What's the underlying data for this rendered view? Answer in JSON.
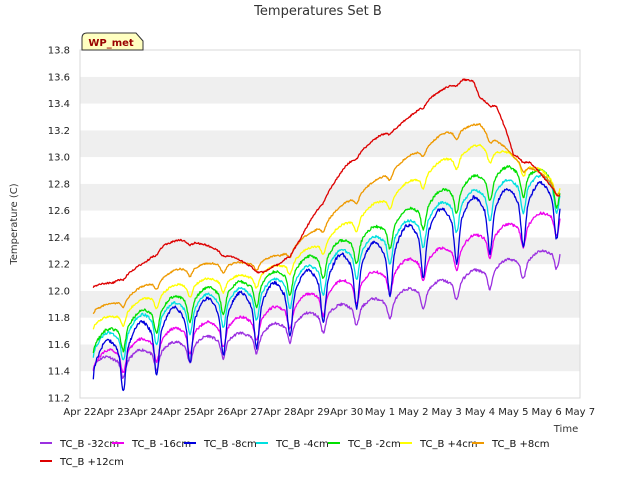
{
  "chart_data": {
    "type": "line",
    "title": "Temperatures Set B",
    "xlabel": "Time",
    "ylabel": "Temperature (C)",
    "ylim": [
      11.2,
      13.8
    ],
    "yticks": [
      11.2,
      11.4,
      11.6,
      11.8,
      12.0,
      12.2,
      12.4,
      12.6,
      12.8,
      13.0,
      13.2,
      13.4,
      13.6,
      13.8
    ],
    "x_tick_labels": [
      "Apr 22",
      "Apr 23",
      "Apr 24",
      "Apr 25",
      "Apr 26",
      "Apr 27",
      "Apr 28",
      "Apr 29",
      "Apr 30",
      "May 1",
      "May 2",
      "May 3",
      "May 4",
      "May 5",
      "May 6",
      "May 7"
    ],
    "xlim_days": [
      0,
      15
    ],
    "grid": "horizontal bands",
    "badge": "WP_met",
    "legend_position": "bottom",
    "series": [
      {
        "name": "TC_B -32cm",
        "color": "#9b30e0",
        "base": [
          [
            0.4,
            11.48
          ],
          [
            1,
            11.48
          ],
          [
            2,
            11.54
          ],
          [
            3,
            11.6
          ],
          [
            4,
            11.64
          ],
          [
            5,
            11.66
          ],
          [
            6,
            11.74
          ],
          [
            7,
            11.82
          ],
          [
            8,
            11.88
          ],
          [
            9,
            11.92
          ],
          [
            10,
            12.0
          ],
          [
            11,
            12.06
          ],
          [
            12,
            12.14
          ],
          [
            13,
            12.22
          ],
          [
            14,
            12.28
          ],
          [
            14.4,
            12.33
          ]
        ],
        "amp": 0.12,
        "noise": 0.02
      },
      {
        "name": "TC_B -16cm",
        "color": "#ee00ee",
        "base": [
          [
            0.4,
            11.48
          ],
          [
            1,
            11.54
          ],
          [
            2,
            11.62
          ],
          [
            3,
            11.7
          ],
          [
            4,
            11.74
          ],
          [
            5,
            11.78
          ],
          [
            6,
            11.86
          ],
          [
            7,
            11.96
          ],
          [
            8,
            12.06
          ],
          [
            9,
            12.12
          ],
          [
            10,
            12.22
          ],
          [
            11,
            12.3
          ],
          [
            12,
            12.4
          ],
          [
            13,
            12.48
          ],
          [
            14,
            12.56
          ],
          [
            14.4,
            12.6
          ]
        ],
        "amp": 0.14,
        "noise": 0.02
      },
      {
        "name": "TC_B -8cm",
        "color": "#0000dd",
        "base": [
          [
            0.4,
            11.5
          ],
          [
            1,
            11.58
          ],
          [
            2,
            11.72
          ],
          [
            3,
            11.82
          ],
          [
            4,
            11.88
          ],
          [
            5,
            11.92
          ],
          [
            6,
            12.0
          ],
          [
            7,
            12.1
          ],
          [
            8,
            12.22
          ],
          [
            9,
            12.3
          ],
          [
            10,
            12.44
          ],
          [
            11,
            12.56
          ],
          [
            12,
            12.64
          ],
          [
            13,
            12.7
          ],
          [
            14,
            12.74
          ],
          [
            14.4,
            12.77
          ]
        ],
        "amp": 0.3,
        "noise": 0.025
      },
      {
        "name": "TC_B -4cm",
        "color": "#00e0e0",
        "base": [
          [
            0.4,
            11.6
          ],
          [
            1,
            11.66
          ],
          [
            2,
            11.8
          ],
          [
            3,
            11.88
          ],
          [
            4,
            11.94
          ],
          [
            5,
            11.98
          ],
          [
            6,
            12.06
          ],
          [
            7,
            12.16
          ],
          [
            8,
            12.28
          ],
          [
            9,
            12.38
          ],
          [
            10,
            12.5
          ],
          [
            11,
            12.64
          ],
          [
            12,
            12.72
          ],
          [
            13,
            12.8
          ],
          [
            14,
            12.82
          ],
          [
            14.4,
            12.8
          ]
        ],
        "amp": 0.18,
        "noise": 0.02
      },
      {
        "name": "TC_B -2cm",
        "color": "#00e000",
        "base": [
          [
            0.4,
            11.62
          ],
          [
            1,
            11.7
          ],
          [
            2,
            11.84
          ],
          [
            3,
            11.94
          ],
          [
            4,
            12.0
          ],
          [
            5,
            12.04
          ],
          [
            6,
            12.12
          ],
          [
            7,
            12.24
          ],
          [
            8,
            12.36
          ],
          [
            9,
            12.46
          ],
          [
            10,
            12.6
          ],
          [
            11,
            12.74
          ],
          [
            12,
            12.84
          ],
          [
            13,
            12.9
          ],
          [
            14,
            12.86
          ],
          [
            14.4,
            12.8
          ]
        ],
        "amp": 0.15,
        "noise": 0.02
      },
      {
        "name": "TC_B +4cm",
        "color": "#ffff00",
        "base": [
          [
            0.4,
            11.76
          ],
          [
            1,
            11.8
          ],
          [
            2,
            11.94
          ],
          [
            3,
            12.04
          ],
          [
            4,
            12.08
          ],
          [
            5,
            12.1
          ],
          [
            6,
            12.18
          ],
          [
            7,
            12.32
          ],
          [
            8,
            12.5
          ],
          [
            9,
            12.66
          ],
          [
            10,
            12.82
          ],
          [
            11,
            12.98
          ],
          [
            12,
            13.08
          ],
          [
            13,
            13.0
          ],
          [
            14,
            12.86
          ],
          [
            14.4,
            12.8
          ]
        ],
        "amp": 0.08,
        "noise": 0.015
      },
      {
        "name": "TC_B +8cm",
        "color": "#ee9900",
        "base": [
          [
            0.4,
            11.86
          ],
          [
            1,
            11.9
          ],
          [
            2,
            12.04
          ],
          [
            3,
            12.16
          ],
          [
            4,
            12.2
          ],
          [
            5,
            12.2
          ],
          [
            6,
            12.26
          ],
          [
            7,
            12.44
          ],
          [
            8,
            12.66
          ],
          [
            9,
            12.84
          ],
          [
            10,
            13.02
          ],
          [
            11,
            13.18
          ],
          [
            12,
            13.24
          ],
          [
            13,
            13.0
          ],
          [
            14,
            12.84
          ],
          [
            14.4,
            12.76
          ]
        ],
        "amp": 0.05,
        "noise": 0.012
      },
      {
        "name": "TC_B +12cm",
        "color": "#dd0000",
        "base": [
          [
            0.4,
            12.04
          ],
          [
            1,
            12.06
          ],
          [
            2,
            12.22
          ],
          [
            2.5,
            12.34
          ],
          [
            3,
            12.38
          ],
          [
            3.5,
            12.36
          ],
          [
            4,
            12.32
          ],
          [
            5,
            12.2
          ],
          [
            5.5,
            12.14
          ],
          [
            6,
            12.2
          ],
          [
            6.5,
            12.34
          ],
          [
            7,
            12.56
          ],
          [
            7.5,
            12.76
          ],
          [
            8,
            12.94
          ],
          [
            8.5,
            13.06
          ],
          [
            9,
            13.16
          ],
          [
            9.5,
            13.22
          ],
          [
            10,
            13.32
          ],
          [
            10.5,
            13.44
          ],
          [
            11,
            13.52
          ],
          [
            11.5,
            13.58
          ],
          [
            11.8,
            13.56
          ],
          [
            12,
            13.44
          ],
          [
            12.5,
            13.38
          ],
          [
            12.8,
            13.18
          ],
          [
            13,
            13.02
          ],
          [
            13.5,
            12.96
          ],
          [
            14,
            12.82
          ],
          [
            14.4,
            12.72
          ]
        ],
        "amp": 0.02,
        "noise": 0.012
      }
    ]
  }
}
